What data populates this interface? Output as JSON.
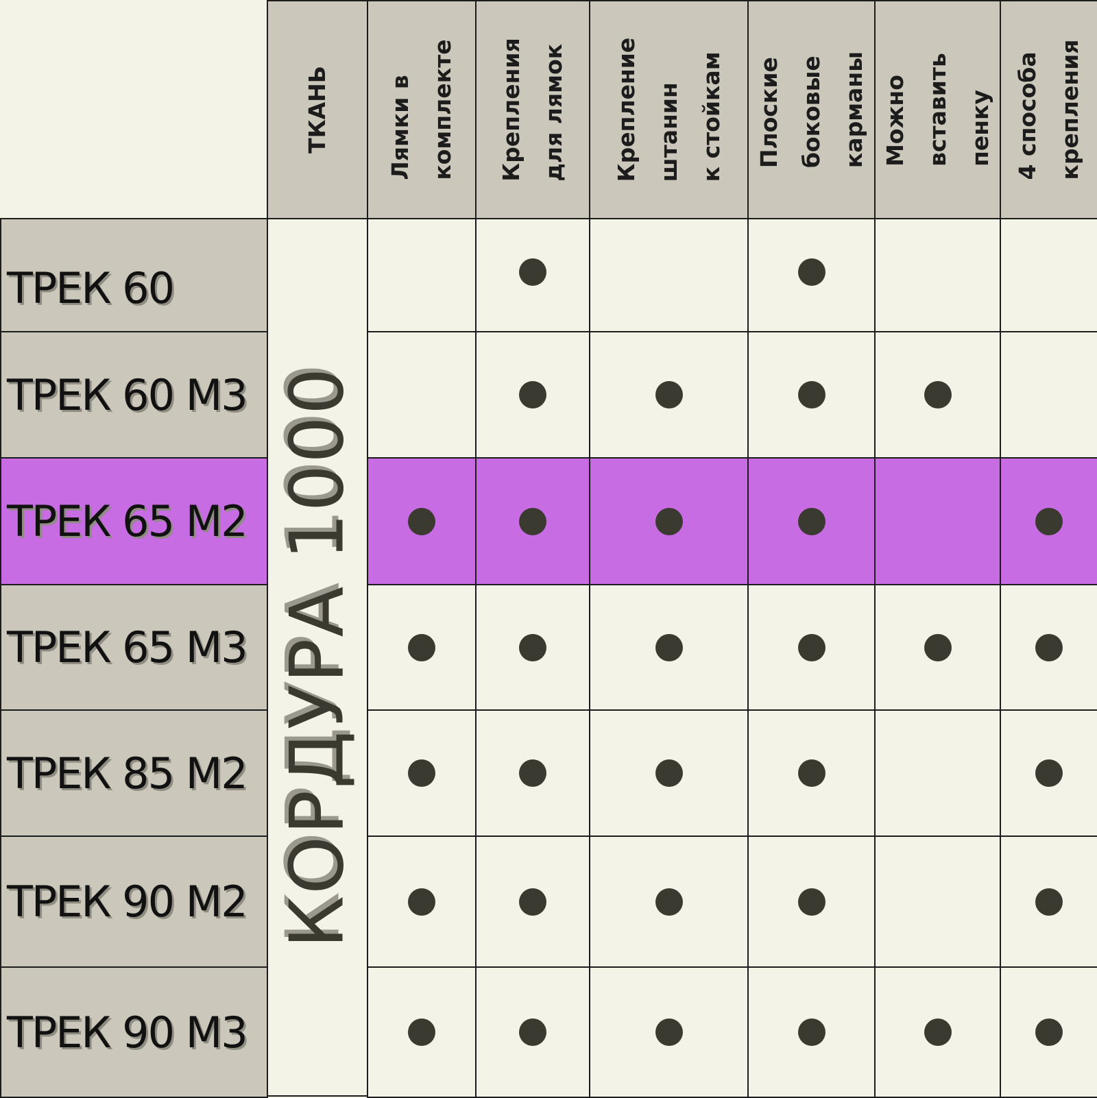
{
  "table": {
    "fabric_header": "ТКАНЬ",
    "fabric_value": "КОРДУРА 1000",
    "features": [
      "Лямки в\nкомплекте",
      "Крепления\nдля лямок",
      "Крепление\nштанин\nк стойкам",
      "Плоские\nбоковые\nкарманы",
      "Можно\nвставить\nпенку",
      "4 способа\nкрепления"
    ],
    "highlight_color": "#c76ce3",
    "rows": [
      {
        "name": "ТРЕК 60",
        "marks": [
          false,
          true,
          false,
          true,
          false,
          false
        ],
        "highlighted": false
      },
      {
        "name": "ТРЕК 60 М3",
        "marks": [
          false,
          true,
          true,
          true,
          true,
          false
        ],
        "highlighted": false
      },
      {
        "name": "ТРЕК 65 М2",
        "marks": [
          true,
          true,
          true,
          true,
          false,
          true
        ],
        "highlighted": true
      },
      {
        "name": "ТРЕК 65 М3",
        "marks": [
          true,
          true,
          true,
          true,
          true,
          true
        ],
        "highlighted": false
      },
      {
        "name": "ТРЕК 85 М2",
        "marks": [
          true,
          true,
          true,
          true,
          false,
          true
        ],
        "highlighted": false
      },
      {
        "name": "ТРЕК 90 М2",
        "marks": [
          true,
          true,
          true,
          true,
          false,
          true
        ],
        "highlighted": false
      },
      {
        "name": "ТРЕК 90 М3",
        "marks": [
          true,
          true,
          true,
          true,
          true,
          true
        ],
        "highlighted": false
      }
    ]
  }
}
